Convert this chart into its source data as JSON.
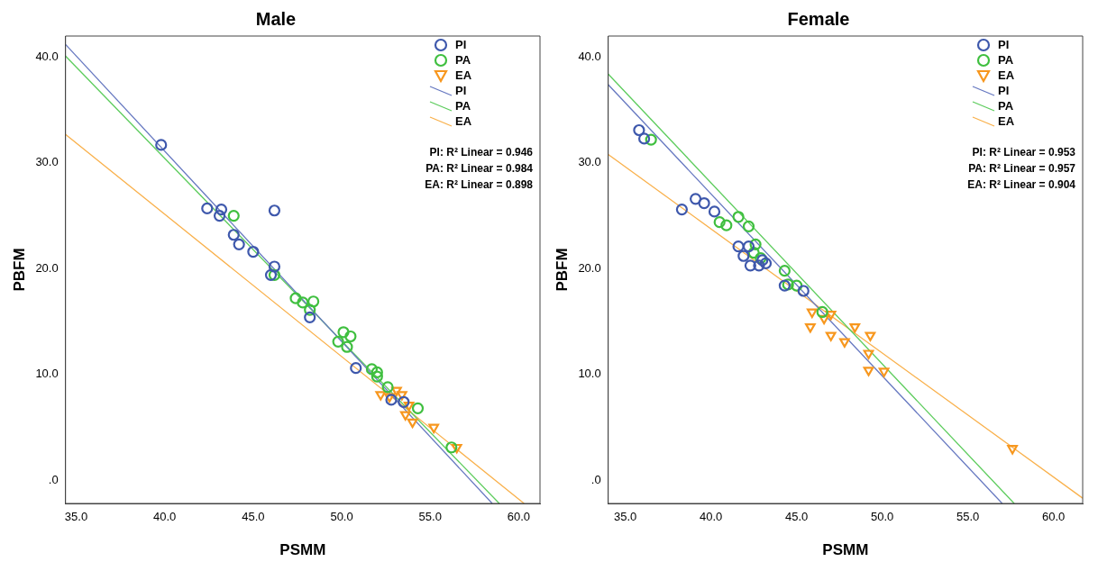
{
  "chart_data": [
    {
      "type": "scatter",
      "title": "Male",
      "xlabel": "PSMM",
      "ylabel": "PBFM",
      "xlim": [
        34.4,
        61.2
      ],
      "ylim": [
        -2.2,
        42
      ],
      "xticks": [
        {
          "value": 35,
          "label": "35.0"
        },
        {
          "value": 40,
          "label": "40.0"
        },
        {
          "value": 45,
          "label": "45.0"
        },
        {
          "value": 50,
          "label": "50.0"
        },
        {
          "value": 55,
          "label": "55.0"
        },
        {
          "value": 60,
          "label": "60.0"
        }
      ],
      "yticks": [
        {
          "value": 0,
          "label": ".0"
        },
        {
          "value": 10,
          "label": "10.0"
        },
        {
          "value": 20,
          "label": "20.0"
        },
        {
          "value": 30,
          "label": "30.0"
        },
        {
          "value": 40,
          "label": "40.0"
        }
      ],
      "grid": false,
      "legend": "top right",
      "annotations": [
        "PI: R² Linear = 0.946",
        "PA: R² Linear = 0.984",
        "EA: R² Linear = 0.898"
      ],
      "series": [
        {
          "name": "PI",
          "type": "scatter",
          "marker": "circle",
          "color": "#3e58ac",
          "x": [
            39.8,
            42.4,
            43.2,
            43.1,
            43.9,
            44.2,
            45.0,
            46.2,
            46.0,
            46.2,
            48.2,
            50.8,
            52.8,
            53.5
          ],
          "values": [
            31.7,
            25.7,
            25.6,
            25.0,
            23.2,
            22.3,
            21.6,
            20.2,
            19.4,
            25.5,
            15.4,
            10.6,
            7.6,
            7.4
          ]
        },
        {
          "name": "PA",
          "type": "scatter",
          "marker": "circle",
          "color": "#3fbf3f",
          "x": [
            43.9,
            46.2,
            47.4,
            47.8,
            48.2,
            48.4,
            49.8,
            50.1,
            50.5,
            50.3,
            51.7,
            52.0,
            52.0,
            54.3,
            56.2,
            52.6
          ],
          "values": [
            25.0,
            19.4,
            17.2,
            16.8,
            16.1,
            16.9,
            13.1,
            14.0,
            13.6,
            12.6,
            10.5,
            10.2,
            9.8,
            6.8,
            3.1,
            8.8
          ]
        },
        {
          "name": "EA",
          "type": "scatter",
          "marker": "triangle",
          "color": "#f7971e",
          "x": [
            52.2,
            52.7,
            53.1,
            53.4,
            53.8,
            53.6,
            54.0,
            55.2,
            56.5
          ],
          "values": [
            8.1,
            7.9,
            8.5,
            8.1,
            7.1,
            6.2,
            5.5,
            5.0,
            3.1
          ]
        },
        {
          "name": "PI",
          "type": "line",
          "marker": "none",
          "color": "#6577c0",
          "x": [
            34.4,
            58.5
          ],
          "values": [
            41.2,
            -2.2
          ]
        },
        {
          "name": "PA",
          "type": "line",
          "marker": "none",
          "color": "#5ccc5c",
          "x": [
            34.4,
            58.9
          ],
          "values": [
            40.1,
            -2.2
          ]
        },
        {
          "name": "EA",
          "type": "line",
          "marker": "none",
          "color": "#f9b04a",
          "x": [
            34.4,
            60.3
          ],
          "values": [
            32.7,
            -2.2
          ]
        }
      ]
    },
    {
      "type": "scatter",
      "title": "Female",
      "xlabel": "PSMM",
      "ylabel": "PBFM",
      "xlim": [
        34.0,
        61.7
      ],
      "ylim": [
        -2.2,
        42
      ],
      "xticks": [
        {
          "value": 35,
          "label": "35.0"
        },
        {
          "value": 40,
          "label": "40.0"
        },
        {
          "value": 45,
          "label": "45.0"
        },
        {
          "value": 50,
          "label": "50.0"
        },
        {
          "value": 55,
          "label": "55.0"
        },
        {
          "value": 60,
          "label": "60.0"
        }
      ],
      "yticks": [
        {
          "value": 0,
          "label": ".0"
        },
        {
          "value": 10,
          "label": "10.0"
        },
        {
          "value": 20,
          "label": "20.0"
        },
        {
          "value": 30,
          "label": "30.0"
        },
        {
          "value": 40,
          "label": "40.0"
        }
      ],
      "grid": false,
      "legend": "top right",
      "annotations": [
        "PI: R² Linear = 0.953",
        "PA: R² Linear = 0.957",
        "EA: R² Linear = 0.904"
      ],
      "series": [
        {
          "name": "PI",
          "type": "scatter",
          "marker": "circle",
          "color": "#3e58ac",
          "x": [
            35.8,
            36.1,
            38.3,
            39.1,
            39.6,
            40.2,
            41.6,
            41.9,
            42.2,
            42.3,
            42.8,
            43.0,
            43.2,
            44.3,
            45.4
          ],
          "values": [
            33.1,
            32.3,
            25.6,
            26.6,
            26.2,
            25.4,
            22.1,
            21.2,
            22.1,
            20.3,
            20.3,
            20.8,
            20.5,
            18.4,
            17.9
          ]
        },
        {
          "name": "PA",
          "type": "scatter",
          "marker": "circle",
          "color": "#3fbf3f",
          "x": [
            36.5,
            40.5,
            40.9,
            41.6,
            42.2,
            42.6,
            42.5,
            42.9,
            44.3,
            44.5,
            45.0,
            46.5
          ],
          "values": [
            32.2,
            24.4,
            24.1,
            24.9,
            24.0,
            22.3,
            21.5,
            21.0,
            19.8,
            18.5,
            18.4,
            15.9
          ]
        },
        {
          "name": "EA",
          "type": "scatter",
          "marker": "triangle",
          "color": "#f7971e",
          "x": [
            45.9,
            46.6,
            47.0,
            45.8,
            47.0,
            48.4,
            47.8,
            49.3,
            49.2,
            49.2,
            50.1,
            57.6
          ],
          "values": [
            15.9,
            15.3,
            15.7,
            14.5,
            13.7,
            14.5,
            13.1,
            13.7,
            12.0,
            10.4,
            10.3,
            3.0
          ]
        },
        {
          "name": "PI",
          "type": "line",
          "marker": "none",
          "color": "#6577c0",
          "x": [
            34.0,
            57.0
          ],
          "values": [
            37.4,
            -2.2
          ]
        },
        {
          "name": "PA",
          "type": "line",
          "marker": "none",
          "color": "#5ccc5c",
          "x": [
            34.0,
            57.7
          ],
          "values": [
            38.4,
            -2.2
          ]
        },
        {
          "name": "EA",
          "type": "line",
          "marker": "none",
          "color": "#f9b04a",
          "x": [
            34.0,
            61.7
          ],
          "values": [
            30.8,
            -1.7
          ]
        }
      ]
    }
  ]
}
